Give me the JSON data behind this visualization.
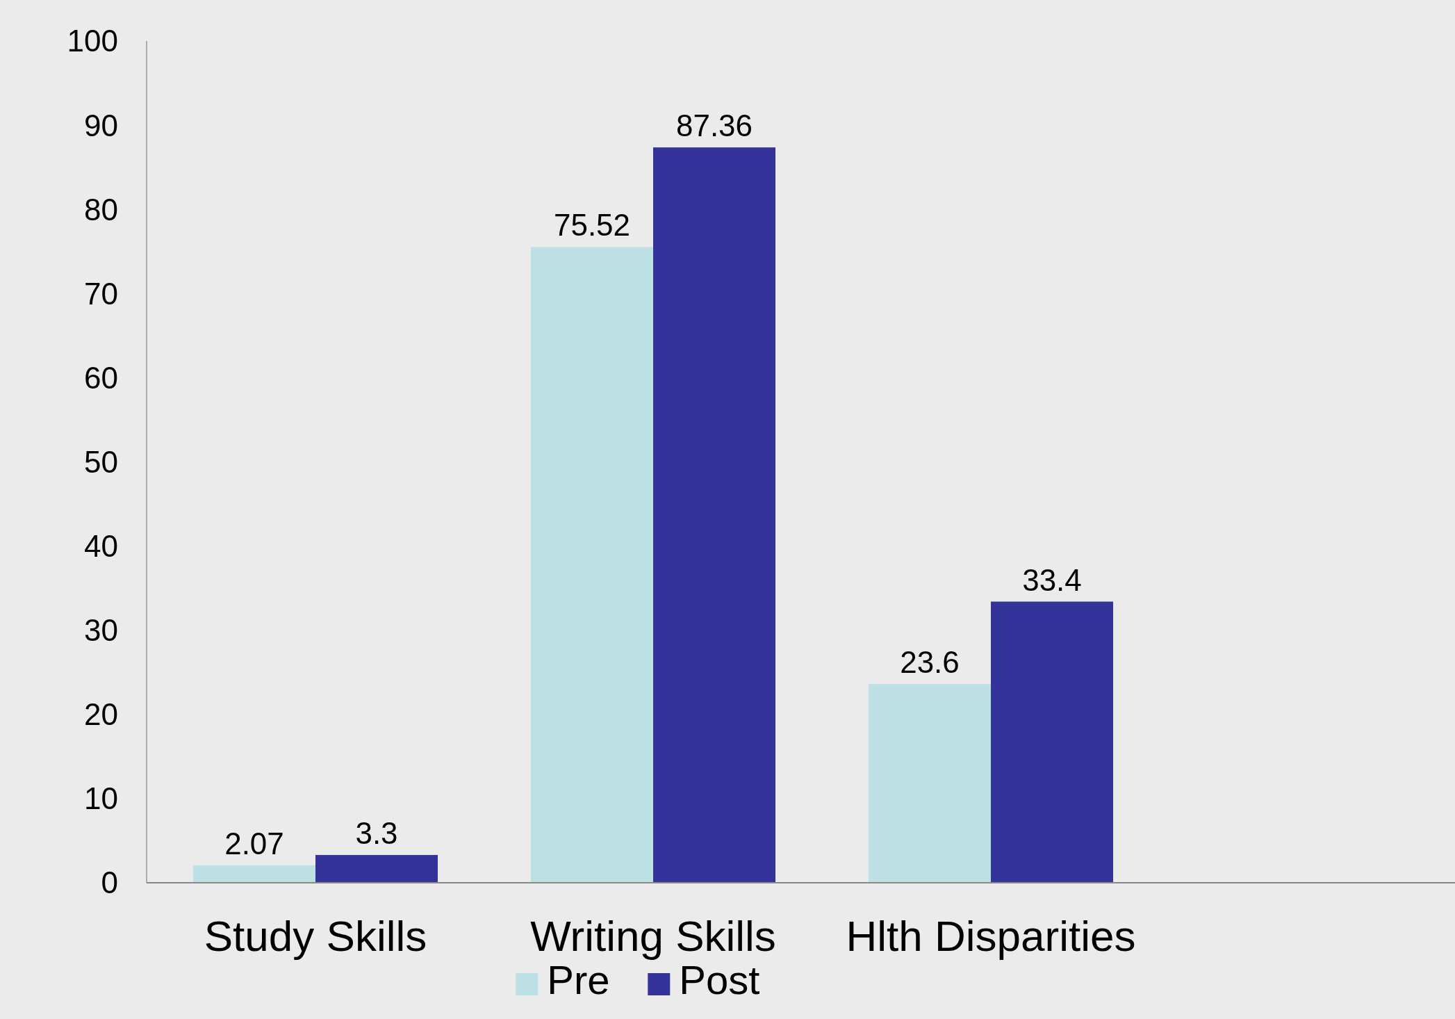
{
  "chart_data": {
    "type": "bar",
    "categories": [
      "Study Skills",
      "Writing Skills",
      "Hlth Disparities"
    ],
    "series": [
      {
        "name": "Pre",
        "color": "#bce0e3",
        "values": [
          2.07,
          75.52,
          23.6
        ]
      },
      {
        "name": "Post",
        "color": "#343399",
        "values": [
          3.3,
          87.36,
          33.4
        ]
      }
    ],
    "ylim": [
      0,
      100
    ],
    "yticks": [
      0,
      10,
      20,
      30,
      40,
      50,
      60,
      70,
      80,
      90,
      100
    ],
    "data_labels": true,
    "legend": "bottom",
    "grid": false
  }
}
